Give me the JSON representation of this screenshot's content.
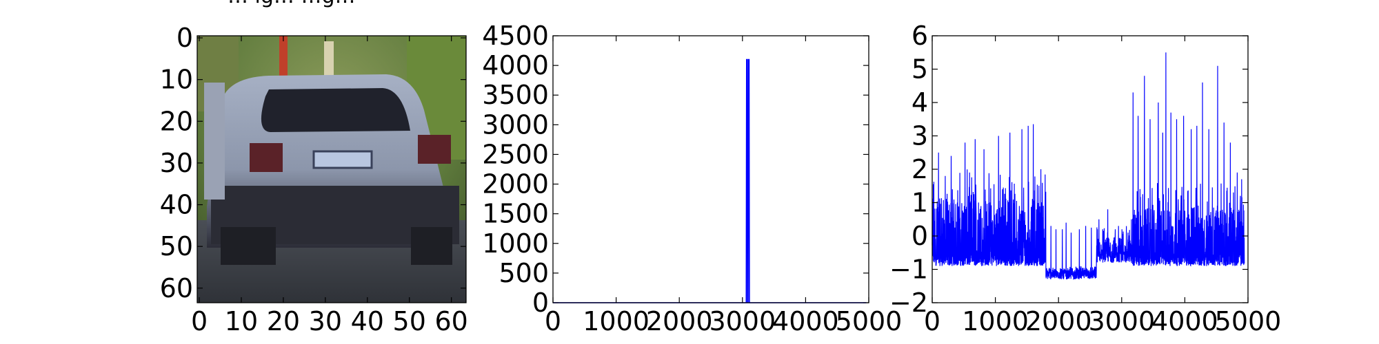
{
  "page_title_fragment": "… ig… …g…",
  "colors": {
    "line": "#0000ff",
    "axes": "#000000",
    "background": "#ffffff"
  },
  "chart_data": [
    {
      "type": "image",
      "description_kind": "car rear view thumbnail",
      "xlim": [
        -0.5,
        63.5
      ],
      "ylim": [
        63.5,
        -0.5
      ],
      "x_ticks": [
        0,
        10,
        20,
        30,
        40,
        50,
        60
      ],
      "x_tick_labels": [
        "0",
        "10",
        "20",
        "30",
        "40",
        "50",
        "60"
      ],
      "y_ticks": [
        0,
        10,
        20,
        30,
        40,
        50,
        60
      ],
      "y_tick_labels": [
        "0",
        "10",
        "20",
        "30",
        "40",
        "50",
        "60"
      ],
      "grid": false
    },
    {
      "type": "line",
      "xlim": [
        0,
        5000
      ],
      "ylim": [
        0,
        4500
      ],
      "x_ticks": [
        0,
        1000,
        2000,
        3000,
        4000,
        5000
      ],
      "x_tick_labels": [
        "0",
        "1000",
        "2000",
        "3000",
        "4000",
        "5000"
      ],
      "y_ticks": [
        0,
        500,
        1000,
        1500,
        2000,
        2500,
        3000,
        3500,
        4000,
        4500
      ],
      "y_tick_labels": [
        "0",
        "500",
        "1000",
        "1500",
        "2000",
        "2500",
        "3000",
        "3500",
        "4000",
        "4500"
      ],
      "series": [
        {
          "x": [
            0,
            3060,
            3065,
            3075,
            3080,
            3090,
            3095,
            3105,
            3110,
            4960
          ],
          "y": [
            0,
            0,
            4100,
            4100,
            0,
            0,
            4100,
            4100,
            0,
            0
          ]
        }
      ],
      "grid": false
    },
    {
      "type": "line",
      "xlim": [
        0,
        5000
      ],
      "ylim": [
        -2,
        6
      ],
      "x_ticks": [
        0,
        1000,
        2000,
        3000,
        4000,
        5000
      ],
      "x_tick_labels": [
        "0",
        "1000",
        "2000",
        "3000",
        "4000",
        "5000"
      ],
      "y_ticks": [
        -2,
        -1,
        0,
        1,
        2,
        3,
        4,
        5,
        6
      ],
      "y_tick_labels": [
        "−2",
        "−1",
        "0",
        "1",
        "2",
        "3",
        "4",
        "5",
        "6"
      ],
      "series": [
        {
          "n_points": 4944,
          "segments": [
            {
              "x": [
                0,
                1800
              ],
              "low": -0.9,
              "high": 2.0,
              "peaks": [
                [
                  100,
                  2.5
                ],
                [
                  300,
                  2.4
                ],
                [
                  520,
                  2.8
                ],
                [
                  680,
                  2.9
                ],
                [
                  820,
                  2.6
                ],
                [
                  1050,
                  3.0
                ],
                [
                  1230,
                  3.1
                ],
                [
                  1420,
                  3.2
                ],
                [
                  1520,
                  3.3
                ],
                [
                  1600,
                  3.35
                ],
                [
                  1720,
                  2.0
                ]
              ]
            },
            {
              "x": [
                1800,
                2600
              ],
              "low": -1.3,
              "high": -0.9,
              "peaks": [
                [
                  1880,
                  0.3
                ],
                [
                  1960,
                  0.2
                ],
                [
                  2060,
                  0.2
                ],
                [
                  2120,
                  0.4
                ],
                [
                  2200,
                  0.1
                ],
                [
                  2330,
                  0.2
                ],
                [
                  2430,
                  0.3
                ],
                [
                  2520,
                  0.25
                ]
              ]
            },
            {
              "x": [
                2600,
                3150
              ],
              "low": -0.8,
              "high": 0.3,
              "peaks": [
                [
                  2640,
                  0.5
                ],
                [
                  2780,
                  0.8
                ],
                [
                  2950,
                  0.3
                ],
                [
                  3100,
                  0.1
                ]
              ]
            },
            {
              "x": [
                3150,
                4944
              ],
              "low": -0.9,
              "high": 1.6,
              "peaks": [
                [
                  3180,
                  4.3
                ],
                [
                  3260,
                  3.6
                ],
                [
                  3360,
                  4.8
                ],
                [
                  3450,
                  3.5
                ],
                [
                  3580,
                  4.0
                ],
                [
                  3650,
                  3.1
                ],
                [
                  3700,
                  5.5
                ],
                [
                  3780,
                  3.7
                ],
                [
                  3870,
                  3.5
                ],
                [
                  3980,
                  3.6
                ],
                [
                  4100,
                  3.2
                ],
                [
                  4190,
                  3.3
                ],
                [
                  4280,
                  4.6
                ],
                [
                  4380,
                  3.2
                ],
                [
                  4520,
                  5.1
                ],
                [
                  4620,
                  3.4
                ],
                [
                  4720,
                  2.8
                ],
                [
                  4830,
                  1.9
                ],
                [
                  4900,
                  1.7
                ]
              ]
            }
          ]
        }
      ],
      "grid": false
    }
  ]
}
